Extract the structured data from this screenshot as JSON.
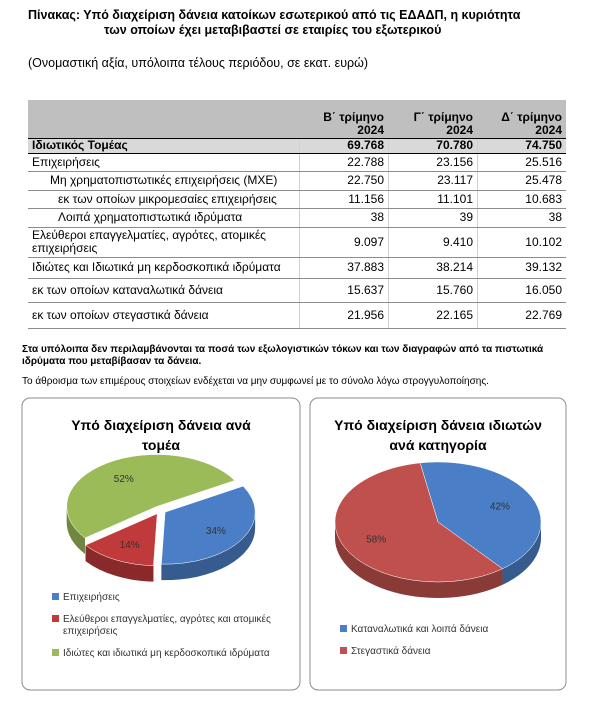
{
  "header": {
    "title": "Πίνακας: Υπό διαχείριση δάνεια κατοίκων εσωτερικού από τις ΕΔΑΔΠ, η κυριότητα",
    "title_cont": "των οποίων έχει μεταβιβαστεί σε εταιρίες του εξωτερικού",
    "subtitle": "(Ονομαστική αξία, υπόλοιπα τέλους περιόδου, σε εκατ. ευρώ)"
  },
  "table": {
    "columns": [
      "Β΄ τρίμηνο\n2024",
      "Γ΄ τρίμηνο\n2024",
      "Δ΄ τρίμηνο\n2024"
    ],
    "rows": [
      [
        "Ιδιωτικός Τομέας",
        "69.768",
        "70.780",
        "74.750"
      ],
      [
        "Επιχειρήσεις",
        "22.788",
        "23.156",
        "25.516"
      ],
      [
        "Μη χρηματοπιστωτικές επιχειρήσεις (ΜΧΕ)",
        "22.750",
        "23.117",
        "25.478"
      ],
      [
        "εκ των οποίων μικρομεσαίες επιχειρήσεις",
        "11.156",
        "11.101",
        "10.683"
      ],
      [
        "Λοιπά χρηματοπιστωτικά ιδρύματα",
        "38",
        "39",
        "38"
      ],
      [
        "Ελεύθεροι επαγγελματίες, αγρότες, ατομικές επιχειρήσεις",
        "9.097",
        "9.410",
        "10.102"
      ],
      [
        "Ιδιώτες και Ιδιωτικά μη κερδοσκοπικά ιδρύματα",
        "37.883",
        "38.214",
        "39.132"
      ],
      [
        "εκ των οποίων καταναλωτικά δάνεια",
        "15.637",
        "15.760",
        "16.050"
      ],
      [
        "εκ των οποίων στεγαστικά δάνεια",
        "21.956",
        "22.165",
        "22.769"
      ]
    ]
  },
  "notes": [
    "Στα υπόλοιπα δεν περιλαμβάνονται τα ποσά των εξωλογιστικών τόκων και των διαγραφών από τα πιστωτικά ιδρύματα που μεταβίβασαν τα δάνεια.",
    "Το άθροισμα των επιμέρους στοιχείων ενδέχεται να μην συμφωνεί με το σύνολο λόγω στρογγυλοποίησης."
  ],
  "chart_data": [
    {
      "type": "pie",
      "title": "Υπό διαχείριση δάνεια ανά τομέα",
      "categories": [
        "Επιχειρήσεις",
        "Ελεύθεροι επαγγελματίες, αγρότες και ατομικές επιχειρήσεις",
        "Ιδιώτες και ιδιωτικά μη κερδοσκοπικά ιδρύματα"
      ],
      "values": [
        34,
        14,
        52
      ],
      "value_labels": [
        "34%",
        "14%",
        "52%"
      ],
      "colors": [
        "#4a7ec6",
        "#c0393b",
        "#9bbb59"
      ],
      "legend": "bottom"
    },
    {
      "type": "pie",
      "title": "Υπό διαχείριση δάνεια ιδιωτών ανά κατηγορία",
      "categories": [
        "Καταναλωτικά και λοιπά δάνεια",
        "Στεγαστικά δάνεια"
      ],
      "values": [
        42,
        58
      ],
      "value_labels": [
        "42%",
        "58%"
      ],
      "colors": [
        "#4a7ec6",
        "#c0504d"
      ],
      "legend": "bottom"
    }
  ]
}
